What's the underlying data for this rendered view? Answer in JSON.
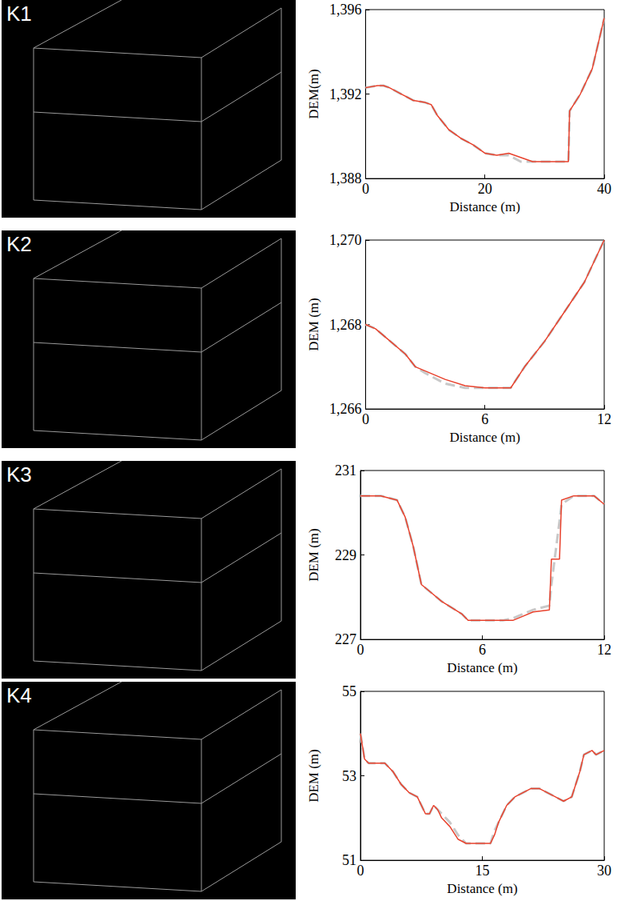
{
  "chart_data": [
    {
      "type": "line",
      "title": "K1",
      "xlabel": "Distance (m)",
      "ylabel": "DEM(m)",
      "x": [
        0,
        2,
        3,
        4,
        6,
        8,
        10,
        11,
        12,
        14,
        16,
        18,
        20,
        22,
        24,
        26,
        28,
        30,
        34,
        34.2,
        36,
        38,
        40
      ],
      "series": [
        {
          "color": "#c8c8c8",
          "line_style": "dashed",
          "values": [
            1392.3,
            1392.4,
            1392.4,
            1392.3,
            1392.0,
            1391.7,
            1391.6,
            1391.5,
            1391.0,
            1390.3,
            1389.9,
            1389.6,
            1389.2,
            1389.1,
            1389.1,
            1388.8,
            1388.8,
            1388.8,
            1388.8,
            1391.2,
            1392.0,
            1393.2,
            1395.6
          ]
        },
        {
          "color": "#e8412c",
          "line_style": "solid",
          "values": [
            1392.3,
            1392.4,
            1392.4,
            1392.3,
            1392.0,
            1391.7,
            1391.6,
            1391.5,
            1391.0,
            1390.3,
            1389.9,
            1389.6,
            1389.2,
            1389.1,
            1389.2,
            1389.0,
            1388.8,
            1388.8,
            1388.8,
            1391.2,
            1392.0,
            1393.2,
            1395.6
          ]
        }
      ],
      "xlim": [
        0,
        40
      ],
      "xticks": [
        0,
        20,
        40
      ],
      "ylim": [
        1388,
        1396
      ],
      "yticks": [
        1388,
        1392,
        1396
      ],
      "grid": false
    },
    {
      "type": "line",
      "title": "K2",
      "xlabel": "Distance (m)",
      "ylabel": "DEM (m)",
      "x": [
        0,
        0.5,
        1,
        2,
        2.5,
        3,
        4,
        5,
        6,
        7,
        7.3,
        8,
        9,
        10,
        11,
        12
      ],
      "series": [
        {
          "color": "#c8c8c8",
          "line_style": "dashed",
          "values": [
            1268.0,
            1267.9,
            1267.7,
            1267.3,
            1267.0,
            1266.85,
            1266.6,
            1266.5,
            1266.5,
            1266.5,
            1266.5,
            1267.0,
            1267.6,
            1268.3,
            1269.0,
            1270.0
          ]
        },
        {
          "color": "#e8412c",
          "line_style": "solid",
          "values": [
            1268.0,
            1267.9,
            1267.7,
            1267.3,
            1267.0,
            1266.9,
            1266.7,
            1266.55,
            1266.5,
            1266.5,
            1266.5,
            1267.0,
            1267.6,
            1268.3,
            1269.0,
            1270.0
          ]
        }
      ],
      "xlim": [
        0,
        12
      ],
      "xticks": [
        0,
        6,
        12
      ],
      "ylim": [
        1266,
        1270
      ],
      "yticks": [
        1266,
        1268,
        1270
      ],
      "grid": false
    },
    {
      "type": "line",
      "title": "K3",
      "xlabel": "Distance (m)",
      "ylabel": "DEM (m)",
      "x": [
        0,
        1,
        1.8,
        2.2,
        2.6,
        3,
        3.5,
        4,
        5,
        5.3,
        6,
        7,
        7.5,
        8,
        8.5,
        9.3,
        9.4,
        9.8,
        9.9,
        10.5,
        11,
        11.5,
        12
      ],
      "series": [
        {
          "color": "#c8c8c8",
          "line_style": "dashed",
          "values": [
            230.4,
            230.4,
            230.3,
            229.9,
            229.2,
            228.3,
            228.1,
            227.9,
            227.6,
            227.45,
            227.45,
            227.45,
            227.5,
            227.6,
            227.7,
            227.8,
            228.3,
            229.8,
            230.2,
            230.4,
            230.4,
            230.4,
            230.2
          ]
        },
        {
          "color": "#e8412c",
          "line_style": "solid",
          "values": [
            230.4,
            230.4,
            230.3,
            229.9,
            229.2,
            228.3,
            228.1,
            227.9,
            227.6,
            227.45,
            227.45,
            227.45,
            227.45,
            227.55,
            227.65,
            227.7,
            228.9,
            228.9,
            230.3,
            230.4,
            230.4,
            230.4,
            230.2
          ]
        }
      ],
      "xlim": [
        0,
        12
      ],
      "xticks": [
        0,
        6,
        12
      ],
      "ylim": [
        227,
        231
      ],
      "yticks": [
        227,
        229,
        231
      ],
      "grid": false
    },
    {
      "type": "line",
      "title": "K4",
      "xlabel": "Distance (m)",
      "ylabel": "DEM (m)",
      "x": [
        0,
        0.5,
        1,
        2,
        3,
        4,
        5,
        6,
        7,
        8,
        8.5,
        9,
        9.5,
        10,
        11,
        12,
        13,
        15,
        16,
        16.5,
        17,
        18,
        19,
        20,
        21,
        22,
        23,
        24,
        25,
        26,
        27,
        27.5,
        28.5,
        29,
        30
      ],
      "series": [
        {
          "color": "#c8c8c8",
          "line_style": "dashed",
          "values": [
            54.0,
            53.4,
            53.3,
            53.3,
            53.3,
            53.1,
            52.8,
            52.6,
            52.5,
            52.1,
            52.1,
            52.3,
            52.2,
            52.1,
            51.9,
            51.6,
            51.4,
            51.4,
            51.4,
            51.7,
            51.9,
            52.3,
            52.5,
            52.6,
            52.7,
            52.7,
            52.6,
            52.5,
            52.4,
            52.5,
            53.1,
            53.5,
            53.6,
            53.5,
            53.6
          ]
        },
        {
          "color": "#e8412c",
          "line_style": "solid",
          "values": [
            54.0,
            53.4,
            53.3,
            53.3,
            53.3,
            53.1,
            52.8,
            52.6,
            52.5,
            52.1,
            52.1,
            52.3,
            52.2,
            52.0,
            51.8,
            51.5,
            51.4,
            51.4,
            51.4,
            51.6,
            51.9,
            52.3,
            52.5,
            52.6,
            52.7,
            52.7,
            52.6,
            52.5,
            52.4,
            52.5,
            53.1,
            53.5,
            53.6,
            53.5,
            53.6
          ]
        }
      ],
      "xlim": [
        0,
        30
      ],
      "xticks": [
        0,
        15,
        30
      ],
      "ylim": [
        51,
        55
      ],
      "yticks": [
        51,
        53,
        55
      ],
      "grid": false
    }
  ]
}
